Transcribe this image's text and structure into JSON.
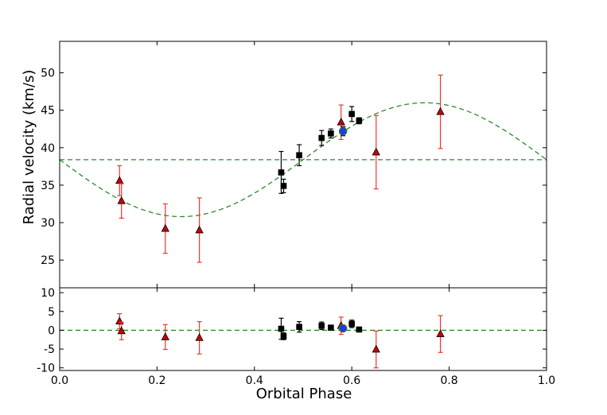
{
  "chart_data": {
    "type": "scatter",
    "xlabel": "Orbital Phase",
    "xlim": [
      0.0,
      1.0
    ],
    "x_ticks": [
      "0.0",
      "0.2",
      "0.4",
      "0.6",
      "0.8",
      "1.0"
    ],
    "x_tick_values": [
      0.0,
      0.2,
      0.4,
      0.6,
      0.8,
      1.0
    ],
    "colors": {
      "fit": "#2a8a2a",
      "triangle_fill": "#cc0000",
      "triangle_error": "#ee3333",
      "square": "#000000",
      "circle": "#1f3fd6",
      "circle_edge": "#3a7a3a"
    },
    "top_panel": {
      "ylabel": "Radial velocity (km/s)",
      "ylim": [
        21.3,
        54.2
      ],
      "y_ticks": [
        "25",
        "30",
        "35",
        "40",
        "45",
        "50"
      ],
      "y_tick_values": [
        25,
        30,
        35,
        40,
        45,
        50
      ],
      "systemic_velocity": 38.4,
      "fit_semi_amplitude": 7.6,
      "fit_curve": "sine",
      "fit_style": "dashed",
      "series": [
        {
          "marker": "triangle",
          "points": [
            {
              "x": 0.123,
              "y": 35.6,
              "err": 2.0
            },
            {
              "x": 0.127,
              "y": 32.9,
              "err": 2.3
            },
            {
              "x": 0.217,
              "y": 29.2,
              "err": 3.3
            },
            {
              "x": 0.287,
              "y": 29.0,
              "err": 4.3
            },
            {
              "x": 0.578,
              "y": 43.4,
              "err": 2.3
            },
            {
              "x": 0.65,
              "y": 39.4,
              "err": 4.9
            },
            {
              "x": 0.782,
              "y": 44.8,
              "err": 4.9
            }
          ]
        },
        {
          "marker": "square",
          "points": [
            {
              "x": 0.455,
              "y": 36.7,
              "err": 2.8
            },
            {
              "x": 0.46,
              "y": 34.9,
              "err": 0.9
            },
            {
              "x": 0.492,
              "y": 39.0,
              "err": 1.4
            },
            {
              "x": 0.538,
              "y": 41.3,
              "err": 1.0
            },
            {
              "x": 0.557,
              "y": 41.9,
              "err": 0.6
            },
            {
              "x": 0.6,
              "y": 44.5,
              "err": 1.0
            },
            {
              "x": 0.615,
              "y": 43.6,
              "err": 0.4
            }
          ]
        },
        {
          "marker": "circle",
          "points": [
            {
              "x": 0.582,
              "y": 42.2,
              "err": 0.6
            }
          ]
        }
      ]
    },
    "bottom_panel": {
      "ylabel": "",
      "ylim": [
        -10.7,
        11.3
      ],
      "y_ticks": [
        "10",
        "5",
        "0",
        "-5",
        "-10"
      ],
      "y_tick_values": [
        10,
        5,
        0,
        -5,
        -10
      ],
      "zero_line": 0,
      "series": [
        {
          "marker": "triangle",
          "points": [
            {
              "x": 0.123,
              "y": 2.4,
              "err": 2.0
            },
            {
              "x": 0.127,
              "y": -0.2,
              "err": 2.3
            },
            {
              "x": 0.217,
              "y": -1.8,
              "err": 3.3
            },
            {
              "x": 0.287,
              "y": -2.0,
              "err": 4.3
            },
            {
              "x": 0.578,
              "y": 1.2,
              "err": 2.3
            },
            {
              "x": 0.65,
              "y": -5.1,
              "err": 4.9
            },
            {
              "x": 0.782,
              "y": -1.0,
              "err": 4.9
            }
          ]
        },
        {
          "marker": "square",
          "points": [
            {
              "x": 0.455,
              "y": 0.4,
              "err": 2.8
            },
            {
              "x": 0.46,
              "y": -1.6,
              "err": 0.9
            },
            {
              "x": 0.492,
              "y": 0.9,
              "err": 1.4
            },
            {
              "x": 0.538,
              "y": 1.2,
              "err": 1.0
            },
            {
              "x": 0.557,
              "y": 0.7,
              "err": 0.6
            },
            {
              "x": 0.6,
              "y": 1.7,
              "err": 1.0
            },
            {
              "x": 0.615,
              "y": 0.2,
              "err": 0.4
            }
          ]
        },
        {
          "marker": "circle",
          "points": [
            {
              "x": 0.582,
              "y": 0.5,
              "err": 0.6
            }
          ]
        }
      ]
    }
  }
}
